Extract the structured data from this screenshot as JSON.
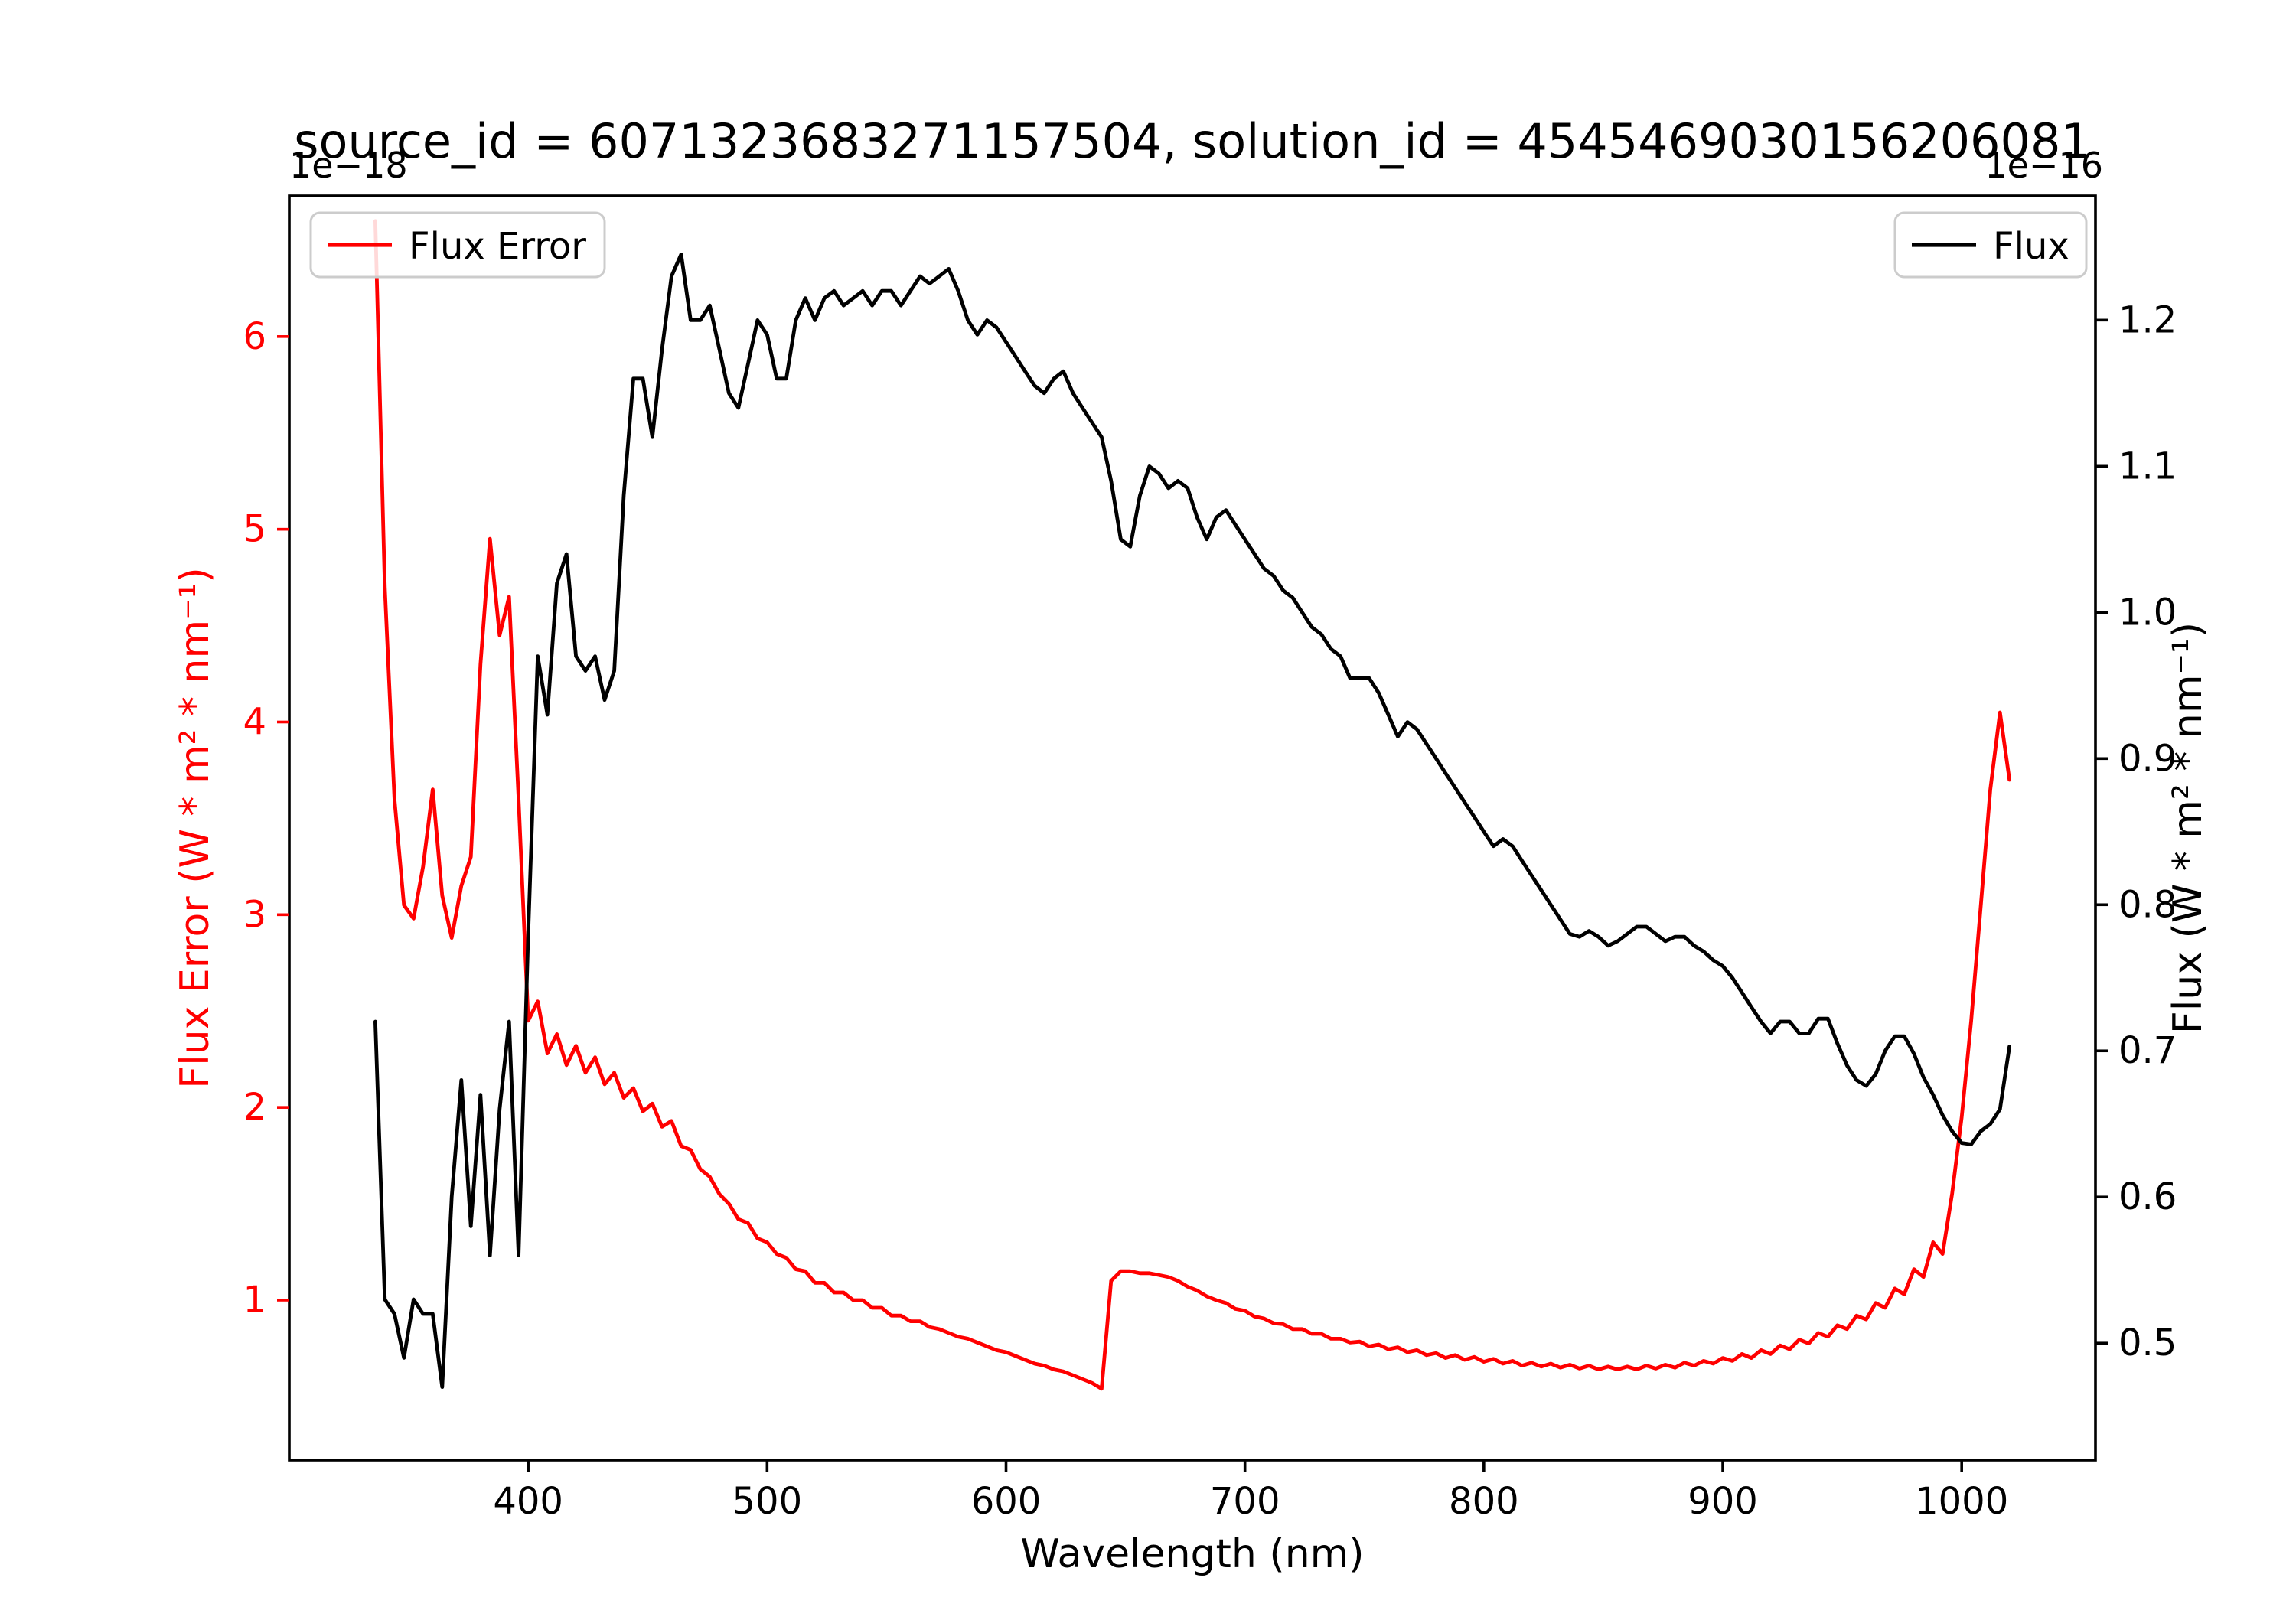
{
  "chart_data": {
    "type": "line",
    "title": "source_id = 6071323683271157504, solution_id = 4545469030156206081",
    "xlabel": "Wavelength (nm)",
    "xlim": [
      300,
      1056
    ],
    "x_ticks": [
      400,
      500,
      600,
      700,
      800,
      900,
      1000
    ],
    "grid": false,
    "left_axis": {
      "label": "Flux Error (W * m² * nm⁻¹)",
      "offset_text": "1e−18",
      "color": "#ff0000",
      "ylim": [
        0.17,
        6.73
      ],
      "ticks": [
        1,
        2,
        3,
        4,
        5,
        6
      ]
    },
    "right_axis": {
      "label": "Flux (W * m² * nm⁻¹)",
      "offset_text": "1e−16",
      "color": "#000000",
      "ylim": [
        0.42,
        1.285
      ],
      "ticks": [
        0.5,
        0.6,
        0.7,
        0.8,
        0.9,
        1.0,
        1.1,
        1.2
      ]
    },
    "wavelengths": [
      336,
      340,
      344,
      348,
      352,
      356,
      360,
      364,
      368,
      372,
      376,
      380,
      384,
      388,
      392,
      396,
      400,
      404,
      408,
      412,
      416,
      420,
      424,
      428,
      432,
      436,
      440,
      444,
      448,
      452,
      456,
      460,
      464,
      468,
      472,
      476,
      480,
      484,
      488,
      492,
      496,
      500,
      504,
      508,
      512,
      516,
      520,
      524,
      528,
      532,
      536,
      540,
      544,
      548,
      552,
      556,
      560,
      564,
      568,
      572,
      576,
      580,
      584,
      588,
      592,
      596,
      600,
      604,
      608,
      612,
      616,
      620,
      624,
      628,
      632,
      636,
      640,
      644,
      648,
      652,
      656,
      660,
      664,
      668,
      672,
      676,
      680,
      684,
      688,
      692,
      696,
      700,
      704,
      708,
      712,
      716,
      720,
      724,
      728,
      732,
      736,
      740,
      744,
      748,
      752,
      756,
      760,
      764,
      768,
      772,
      776,
      780,
      784,
      788,
      792,
      796,
      800,
      804,
      808,
      812,
      816,
      820,
      824,
      828,
      832,
      836,
      840,
      844,
      848,
      852,
      856,
      860,
      864,
      868,
      872,
      876,
      880,
      884,
      888,
      892,
      896,
      900,
      904,
      908,
      912,
      916,
      920,
      924,
      928,
      932,
      936,
      940,
      944,
      948,
      952,
      956,
      960,
      964,
      968,
      972,
      976,
      980,
      984,
      988,
      992,
      996,
      1000,
      1004,
      1008,
      1012,
      1016,
      1020
    ],
    "series": [
      {
        "name": "Flux Error",
        "axis": "left",
        "color": "#ff0000",
        "unit_scale": "1e-18",
        "values": [
          6.6,
          4.7,
          3.6,
          3.05,
          2.98,
          3.25,
          3.65,
          3.1,
          2.88,
          3.15,
          3.3,
          4.3,
          4.95,
          4.45,
          4.65,
          3.6,
          2.45,
          2.55,
          2.28,
          2.38,
          2.22,
          2.32,
          2.18,
          2.26,
          2.12,
          2.18,
          2.05,
          2.1,
          1.98,
          2.02,
          1.9,
          1.93,
          1.8,
          1.78,
          1.68,
          1.64,
          1.55,
          1.5,
          1.42,
          1.4,
          1.32,
          1.3,
          1.24,
          1.22,
          1.16,
          1.15,
          1.09,
          1.09,
          1.04,
          1.04,
          1.0,
          1.0,
          0.96,
          0.96,
          0.92,
          0.92,
          0.89,
          0.89,
          0.86,
          0.85,
          0.83,
          0.81,
          0.8,
          0.78,
          0.76,
          0.74,
          0.73,
          0.71,
          0.69,
          0.67,
          0.66,
          0.64,
          0.63,
          0.61,
          0.59,
          0.57,
          0.54,
          1.1,
          1.15,
          1.15,
          1.14,
          1.14,
          1.13,
          1.12,
          1.1,
          1.07,
          1.05,
          1.02,
          1.0,
          0.985,
          0.955,
          0.945,
          0.915,
          0.905,
          0.88,
          0.875,
          0.85,
          0.85,
          0.825,
          0.825,
          0.8,
          0.8,
          0.78,
          0.785,
          0.76,
          0.77,
          0.745,
          0.755,
          0.73,
          0.74,
          0.715,
          0.725,
          0.7,
          0.715,
          0.69,
          0.705,
          0.68,
          0.695,
          0.67,
          0.685,
          0.66,
          0.675,
          0.655,
          0.67,
          0.65,
          0.665,
          0.645,
          0.66,
          0.64,
          0.655,
          0.64,
          0.655,
          0.64,
          0.66,
          0.645,
          0.665,
          0.65,
          0.675,
          0.66,
          0.685,
          0.67,
          0.7,
          0.685,
          0.72,
          0.7,
          0.74,
          0.72,
          0.765,
          0.745,
          0.795,
          0.775,
          0.83,
          0.81,
          0.87,
          0.85,
          0.92,
          0.9,
          0.985,
          0.96,
          1.06,
          1.03,
          1.16,
          1.12,
          1.3,
          1.24,
          1.55,
          1.95,
          2.45,
          3.05,
          3.65,
          4.05,
          3.7
        ]
      },
      {
        "name": "Flux",
        "axis": "right",
        "color": "#000000",
        "unit_scale": "1e-16",
        "values": [
          0.72,
          0.53,
          0.52,
          0.49,
          0.53,
          0.52,
          0.52,
          0.47,
          0.6,
          0.68,
          0.58,
          0.67,
          0.56,
          0.66,
          0.72,
          0.56,
          0.78,
          0.97,
          0.93,
          1.02,
          1.04,
          0.97,
          0.96,
          0.97,
          0.94,
          0.96,
          1.08,
          1.16,
          1.16,
          1.12,
          1.18,
          1.23,
          1.245,
          1.2,
          1.2,
          1.21,
          1.18,
          1.15,
          1.14,
          1.17,
          1.2,
          1.19,
          1.16,
          1.16,
          1.2,
          1.215,
          1.2,
          1.215,
          1.22,
          1.21,
          1.215,
          1.22,
          1.21,
          1.22,
          1.22,
          1.21,
          1.22,
          1.23,
          1.225,
          1.23,
          1.235,
          1.22,
          1.2,
          1.19,
          1.2,
          1.195,
          1.185,
          1.175,
          1.165,
          1.155,
          1.15,
          1.16,
          1.165,
          1.15,
          1.14,
          1.13,
          1.12,
          1.09,
          1.05,
          1.045,
          1.08,
          1.1,
          1.095,
          1.085,
          1.09,
          1.085,
          1.065,
          1.05,
          1.065,
          1.07,
          1.06,
          1.05,
          1.04,
          1.03,
          1.025,
          1.015,
          1.01,
          1.0,
          0.99,
          0.985,
          0.975,
          0.97,
          0.955,
          0.955,
          0.955,
          0.945,
          0.93,
          0.915,
          0.925,
          0.92,
          0.91,
          0.9,
          0.89,
          0.88,
          0.87,
          0.86,
          0.85,
          0.84,
          0.845,
          0.84,
          0.83,
          0.82,
          0.81,
          0.8,
          0.79,
          0.78,
          0.778,
          0.782,
          0.778,
          0.772,
          0.775,
          0.78,
          0.785,
          0.785,
          0.78,
          0.775,
          0.778,
          0.778,
          0.772,
          0.768,
          0.762,
          0.758,
          0.75,
          0.74,
          0.73,
          0.72,
          0.712,
          0.72,
          0.72,
          0.712,
          0.712,
          0.722,
          0.722,
          0.705,
          0.69,
          0.68,
          0.676,
          0.684,
          0.7,
          0.71,
          0.71,
          0.698,
          0.682,
          0.67,
          0.656,
          0.645,
          0.637,
          0.636,
          0.645,
          0.65,
          0.66,
          0.703
        ]
      }
    ],
    "legends": [
      {
        "label": "Flux Error",
        "position": "upper-left",
        "color": "#ff0000"
      },
      {
        "label": "Flux",
        "position": "upper-right",
        "color": "#000000"
      }
    ]
  }
}
